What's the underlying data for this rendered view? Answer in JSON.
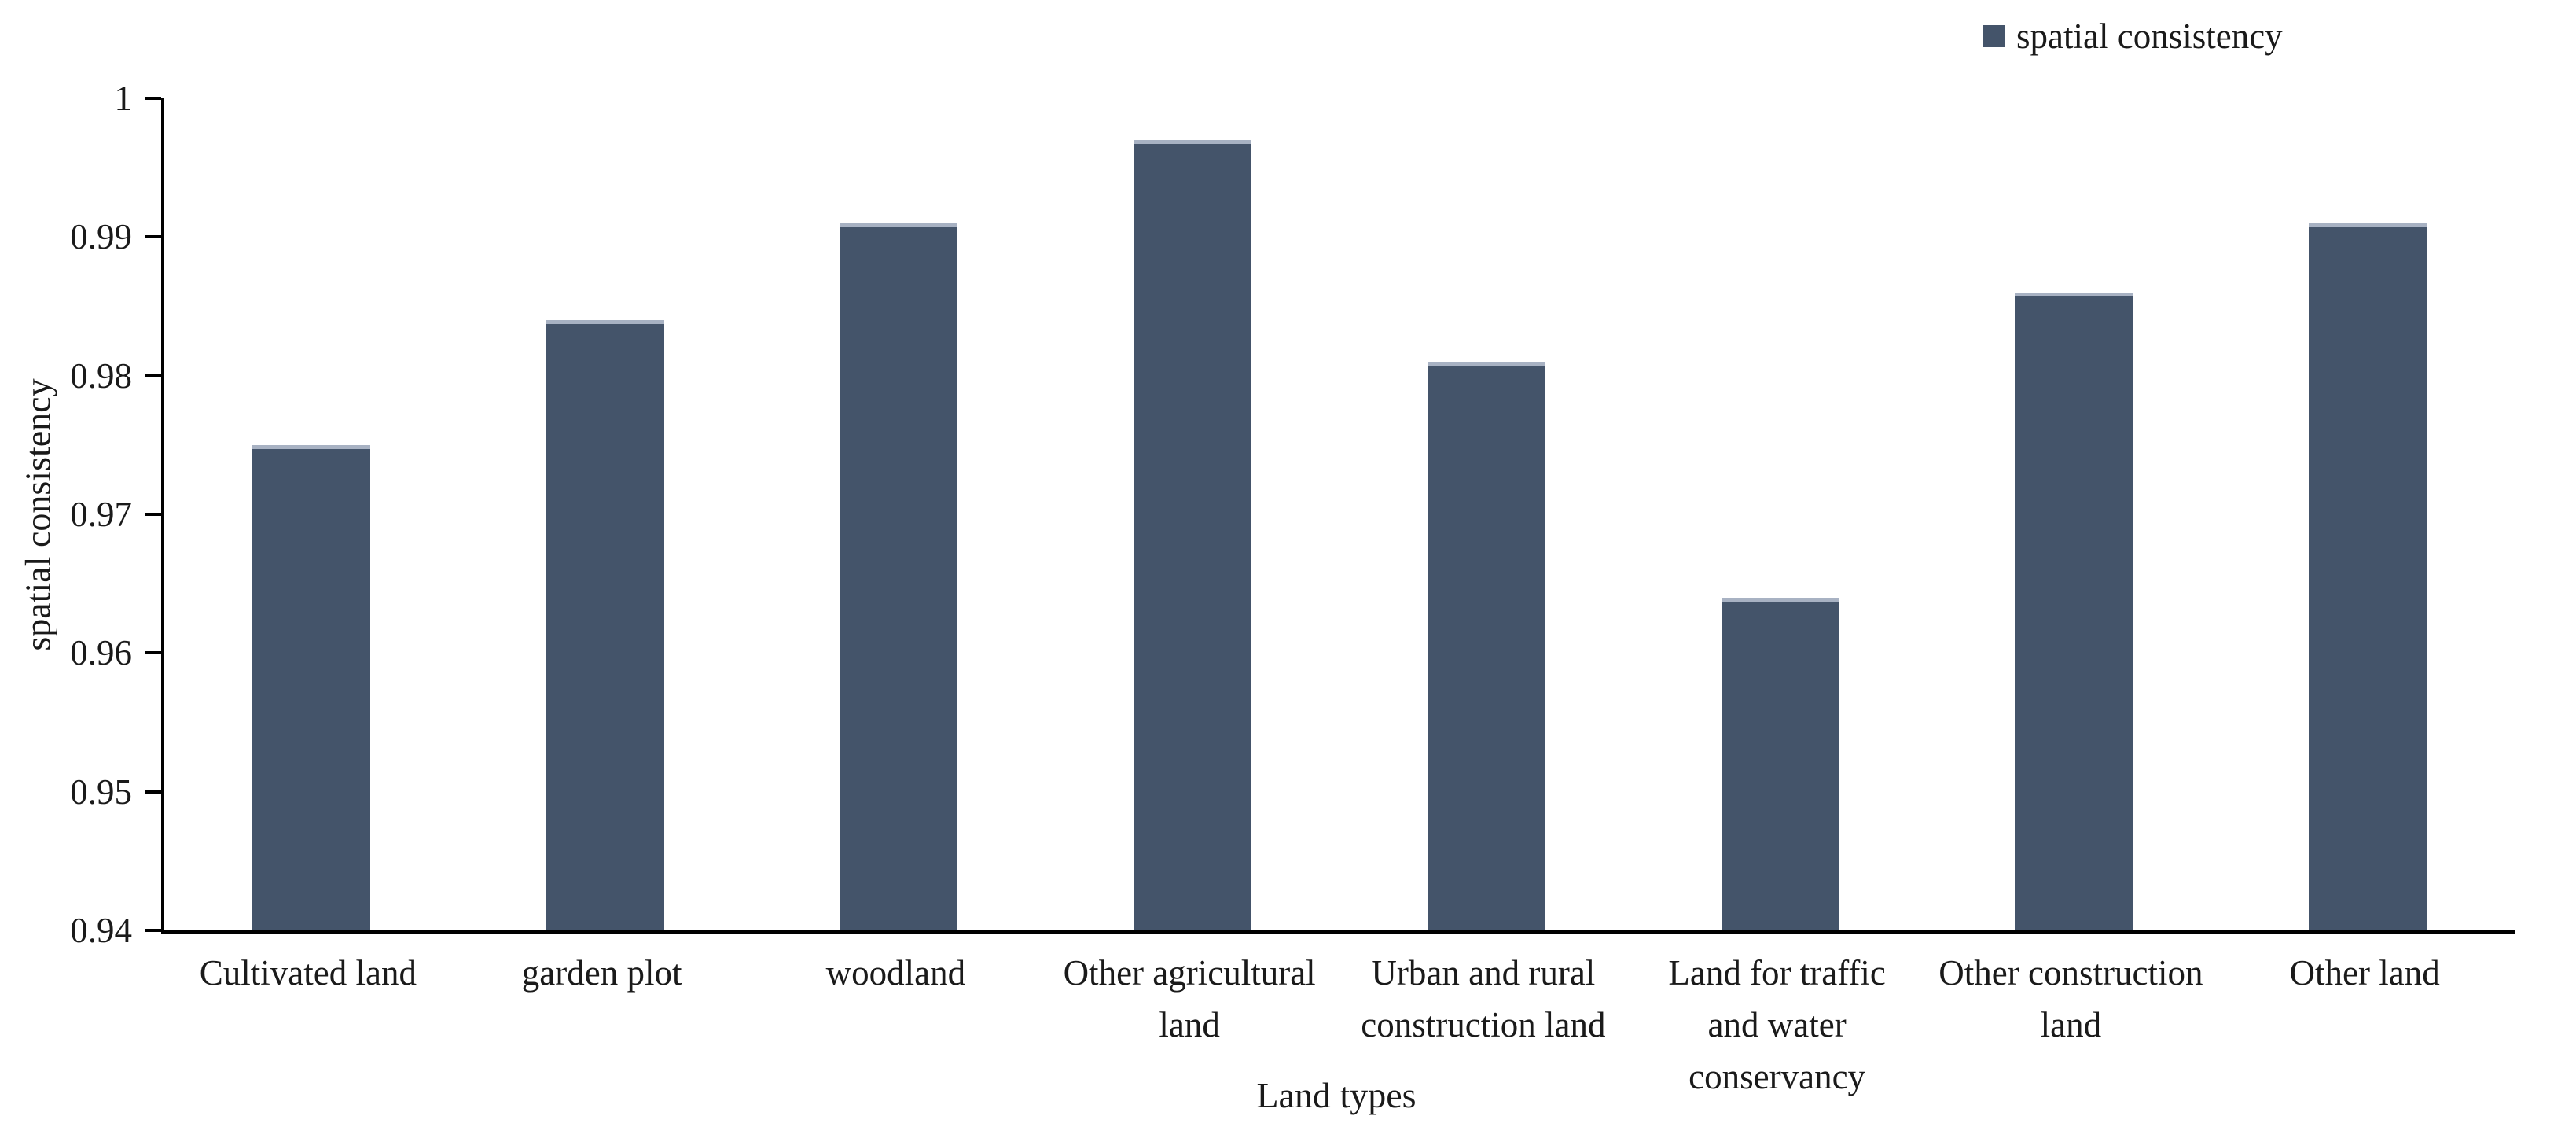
{
  "chart_data": {
    "type": "bar",
    "title": "",
    "series_name": "spatial consistency",
    "categories": [
      "Cultivated land",
      "garden plot",
      "woodland",
      "Other agricultural\nland",
      "Urban and rural\nconstruction land",
      "Land for traffic\nand water\nconservancy",
      "Other construction\nland",
      "Other land"
    ],
    "values": [
      0.975,
      0.984,
      0.991,
      0.997,
      0.981,
      0.964,
      0.986,
      0.991
    ],
    "xlabel": "Land types",
    "ylabel": "spatial consistency",
    "ylim": [
      0.94,
      1.0
    ],
    "y_ticks": [
      "1",
      "0.99",
      "0.98",
      "0.97",
      "0.96",
      "0.95",
      "0.94"
    ],
    "y_tick_values": [
      1.0,
      0.99,
      0.98,
      0.97,
      0.96,
      0.95,
      0.94
    ],
    "grid": false,
    "legend_position": "top-right",
    "bar_color": "#44546A",
    "bar_cap_color": "#A8B2C3",
    "axis_color": "#000000",
    "text_color": "#1A1A1A"
  },
  "legend": {
    "label": "spatial consistency",
    "marker_color": "#44546A"
  }
}
